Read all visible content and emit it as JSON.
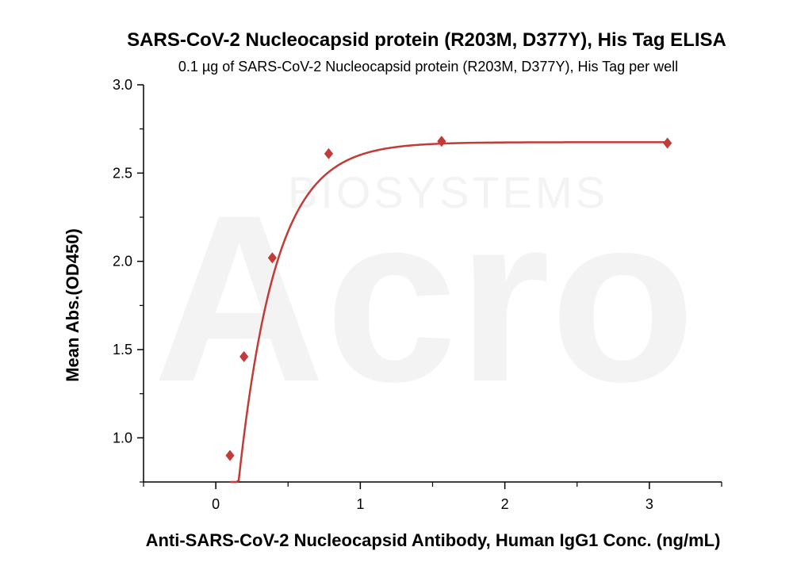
{
  "chart_data": {
    "type": "scatter",
    "title": "SARS-CoV-2 Nucleocapsid protein (R203M, D377Y), His Tag ELISA",
    "subtitle": "0.1 µg of SARS-CoV-2 Nucleocapsid protein (R203M, D377Y), His Tag per well",
    "xlabel": "Anti-SARS-CoV-2 Nucleocapsid Antibody, Human IgG1 Conc. (ng/mL)",
    "ylabel": "Mean Abs.(OD450)",
    "xlim": [
      -0.5,
      3.5
    ],
    "ylim": [
      0.75,
      3.0
    ],
    "x_ticks": [
      0,
      1,
      2,
      3
    ],
    "y_ticks": [
      1.0,
      1.5,
      2.0,
      2.5,
      3.0
    ],
    "x_tick_labels": [
      "0",
      "1",
      "2",
      "3"
    ],
    "y_tick_labels": [
      "1.0",
      "1.5",
      "2.0",
      "2.5",
      "3.0"
    ],
    "grid": false,
    "series": [
      {
        "x": [
          0.098,
          0.195,
          0.391,
          0.781,
          1.5625,
          3.125
        ],
        "y": [
          0.9,
          1.46,
          2.02,
          2.61,
          2.68,
          2.67
        ],
        "marker": "diamond",
        "fit": "four-parameter logistic",
        "color": "#c33b37"
      }
    ]
  },
  "watermark": {
    "main": "Acro",
    "sub": "BIOSYSTEMS"
  }
}
